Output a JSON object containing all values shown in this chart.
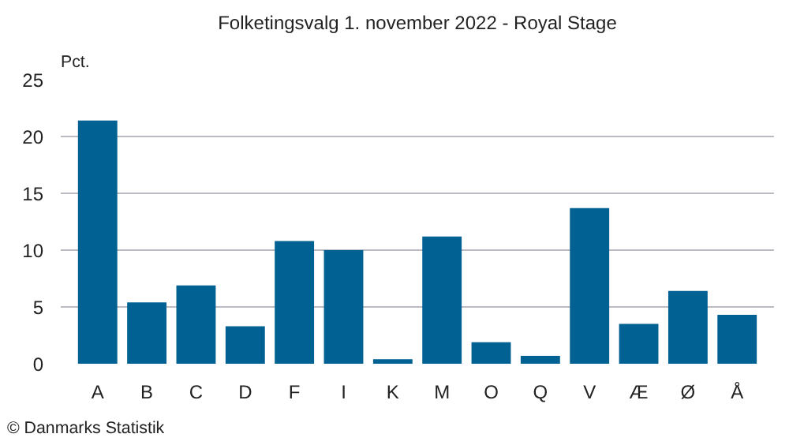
{
  "chart_data": {
    "type": "bar",
    "title": "Folketingsvalg 1. november 2022 - Royal Stage",
    "ylabel": "Pct.",
    "categories": [
      "A",
      "B",
      "C",
      "D",
      "F",
      "I",
      "K",
      "M",
      "O",
      "Q",
      "V",
      "Æ",
      "Ø",
      "Å"
    ],
    "values": [
      21.4,
      5.4,
      6.9,
      3.3,
      10.8,
      10.0,
      0.4,
      11.2,
      1.9,
      0.7,
      13.7,
      3.5,
      6.4,
      4.3
    ],
    "color": "#006192",
    "ylim": [
      0,
      25
    ],
    "yticks": [
      0,
      5,
      10,
      15,
      20,
      25
    ],
    "grid": "y",
    "annotations": [
      "© Danmarks Statistik"
    ]
  }
}
